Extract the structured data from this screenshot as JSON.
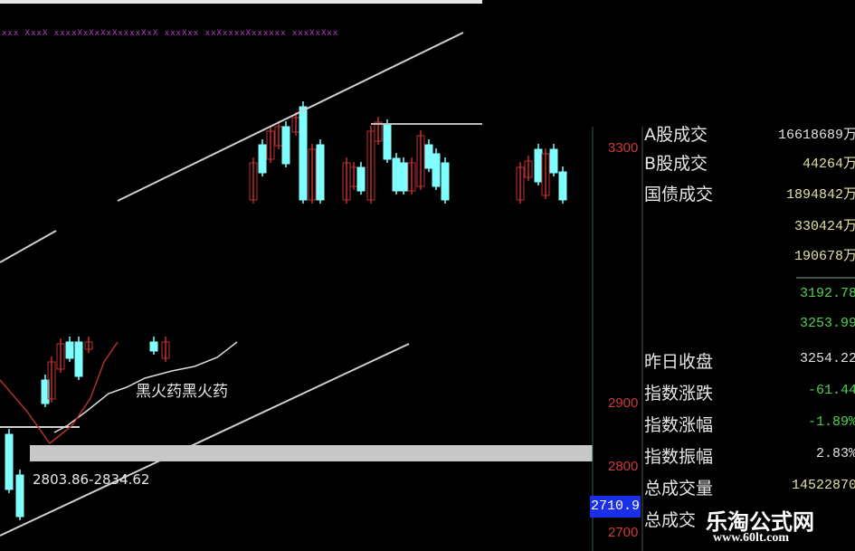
{
  "indicator_row": "xxx XxxX xxxxXxXxXxXxxxxXxX xxxXxx xxXxxxxXxxxxxx xxxXxXxx",
  "axis": {
    "ticks": [
      "3300",
      "2900",
      "2800",
      "2700"
    ],
    "current_price": "2710.9"
  },
  "annotations": {
    "pattern_label": "黑火药黑火药",
    "range_label": "2803.86-2834.62"
  },
  "info_panel": {
    "rows": [
      {
        "label": "A股成交",
        "value": "16618689万"
      },
      {
        "label": "B股成交",
        "value": "44264万"
      },
      {
        "label": "国债成交",
        "value": "1894842万"
      },
      {
        "label": "",
        "value": "330424万"
      },
      {
        "label": "",
        "value": "190678万"
      },
      {
        "label": "",
        "value": "3192.78"
      },
      {
        "label": "",
        "value": "3253.99"
      },
      {
        "label": "昨日收盘",
        "value": "3254.22"
      },
      {
        "label": "指数涨跌",
        "value": "-61.44"
      },
      {
        "label": "指数涨幅",
        "value": "-1.89%"
      },
      {
        "label": "指数振幅",
        "value": "2.83%"
      },
      {
        "label": "总成交量",
        "value": "14522870"
      },
      {
        "label": "总成交",
        "value": ""
      }
    ]
  },
  "colors": {
    "up": "#c03030",
    "down": "#7fffff",
    "axis_label": "#d03a3a",
    "price_box": "#1a2fe8",
    "negative": "#50d050"
  },
  "watermark": {
    "title": "乐淘公式网",
    "url": "www.60lt.com"
  }
}
